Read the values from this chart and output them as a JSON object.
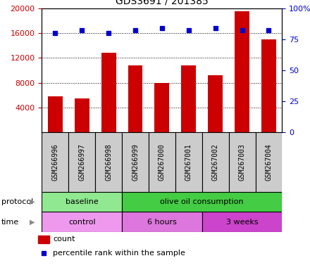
{
  "title": "GDS3691 / 201385",
  "samples": [
    "GSM266996",
    "GSM266997",
    "GSM266998",
    "GSM266999",
    "GSM267000",
    "GSM267001",
    "GSM267002",
    "GSM267003",
    "GSM267004"
  ],
  "counts": [
    5800,
    5500,
    12800,
    10800,
    8000,
    10800,
    9200,
    19500,
    15000
  ],
  "percentile_ranks": [
    80,
    82,
    80,
    82,
    84,
    82,
    84,
    82,
    82
  ],
  "bar_color": "#cc0000",
  "dot_color": "#0000cc",
  "left_ylim": [
    0,
    20000
  ],
  "left_yticks": [
    4000,
    8000,
    12000,
    16000,
    20000
  ],
  "right_ylim": [
    0,
    100
  ],
  "right_yticks": [
    0,
    25,
    50,
    75,
    100
  ],
  "right_yticklabels": [
    "0",
    "25",
    "50",
    "75",
    "100%"
  ],
  "protocol_groups": [
    {
      "label": "baseline",
      "start": 0,
      "end": 3,
      "color": "#90e890"
    },
    {
      "label": "olive oil consumption",
      "start": 3,
      "end": 9,
      "color": "#44cc44"
    }
  ],
  "time_groups": [
    {
      "label": "control",
      "start": 0,
      "end": 3,
      "color": "#ee99ee"
    },
    {
      "label": "6 hours",
      "start": 3,
      "end": 6,
      "color": "#dd77dd"
    },
    {
      "label": "3 weeks",
      "start": 6,
      "end": 9,
      "color": "#cc44cc"
    }
  ],
  "protocol_label": "protocol",
  "time_label": "time",
  "legend_count_label": "count",
  "legend_pct_label": "percentile rank within the sample",
  "tick_label_color_left": "#cc0000",
  "tick_label_color_right": "#0000cc",
  "sample_box_color": "#cccccc",
  "bg_color": "#ffffff"
}
